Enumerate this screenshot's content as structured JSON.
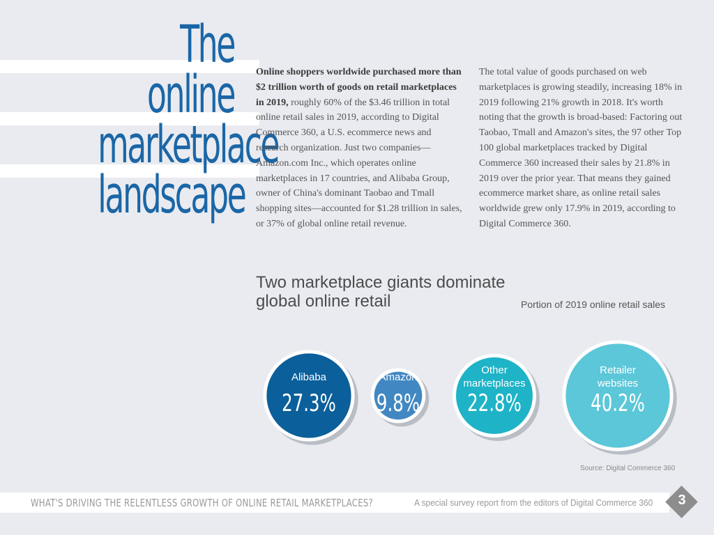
{
  "page_title": [
    "The online",
    "marketplace",
    "landscape"
  ],
  "intro": {
    "col1_lead": "Online shoppers worldwide purchased more than $2 trillion worth of goods on retail marketplaces in 2019,",
    "col1_body": " roughly 60% of the $3.46 trillion in total online retail sales in 2019, according to Digital Commerce 360, a U.S. ecommerce news and research organization. Just two companies—Amazon.com Inc., which operates online marketplaces in 17 countries, and Alibaba Group, owner of China's dominant Taobao and Tmall shopping sites—accounted for $1.28 trillion in sales, or 37% of global online retail revenue.",
    "col2": "The total value of goods purchased on web marketplaces is growing steadily, increasing 18% in 2019 following 21% growth in 2018. It's worth noting that the growth is broad-based: Factoring out Taobao, Tmall and Amazon's sites, the 97 other Top 100 global marketplaces tracked by Digital Commerce 360 increased their sales by 21.8% in 2019 over the prior year. That means they gained ecommerce market share, as online retail sales worldwide grew only 17.9% in 2019, according to Digital Commerce 360."
  },
  "chart_data": {
    "type": "bubble",
    "title": "Two marketplace giants dominate global online retail",
    "subtitle": "Portion of 2019 online retail sales",
    "unit": "%",
    "categories": [
      "Alibaba",
      "Amazon",
      "Other marketplaces",
      "Retailer websites"
    ],
    "display_labels": [
      [
        "Alibaba"
      ],
      [
        "Amazon"
      ],
      [
        "Other",
        "marketplaces"
      ],
      [
        "Retailer",
        "websites"
      ]
    ],
    "values": [
      27.3,
      9.8,
      22.8,
      40.2
    ],
    "value_labels": [
      "27.3%",
      "9.8%",
      "22.8%",
      "40.2%"
    ],
    "colors": [
      "#0b5f9b",
      "#4188c2",
      "#1eb3c7",
      "#5bc7d8"
    ],
    "source": "Source: Digital Commerce 360"
  },
  "footer": {
    "report_title": "WHAT'S DRIVING THE RELENTLESS GROWTH OF ONLINE RETAIL MARKETPLACES?",
    "credit": "A special survey report from the editors of Digital Commerce 360",
    "page_number": "3"
  }
}
